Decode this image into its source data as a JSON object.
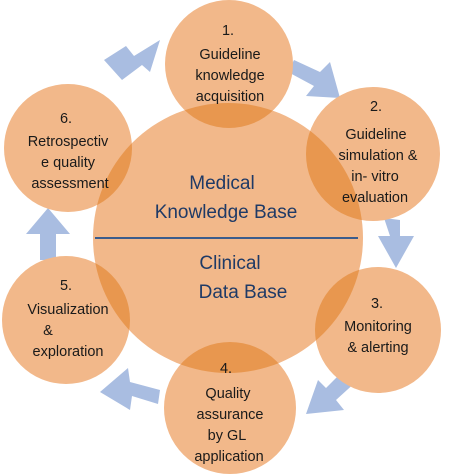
{
  "center": {
    "top": [
      "Medical",
      "Knowledge Base"
    ],
    "bottom": [
      "Clinical",
      "Data Base"
    ]
  },
  "nodes": [
    {
      "id": 1,
      "lines": [
        "1.",
        "Guideline",
        "knowledge",
        "acquisition"
      ]
    },
    {
      "id": 2,
      "lines": [
        "2.",
        "Guideline",
        "simulation &",
        "in- vitro",
        "evaluation"
      ]
    },
    {
      "id": 3,
      "lines": [
        "3.",
        "Monitoring",
        "& alerting"
      ]
    },
    {
      "id": 4,
      "lines": [
        "4.",
        "Quality",
        "assurance",
        "by GL",
        "application"
      ]
    },
    {
      "id": 5,
      "lines": [
        "5.",
        "Visualization",
        "&",
        "exploration"
      ]
    },
    {
      "id": 6,
      "lines": [
        "6.",
        "Retrospectiv",
        "e quality",
        "assessment"
      ]
    }
  ],
  "colors": {
    "circle": "#f2b88a",
    "overlap": "#e8974f",
    "arrow": "#a9bde1",
    "divider": "#3b5c8c"
  }
}
